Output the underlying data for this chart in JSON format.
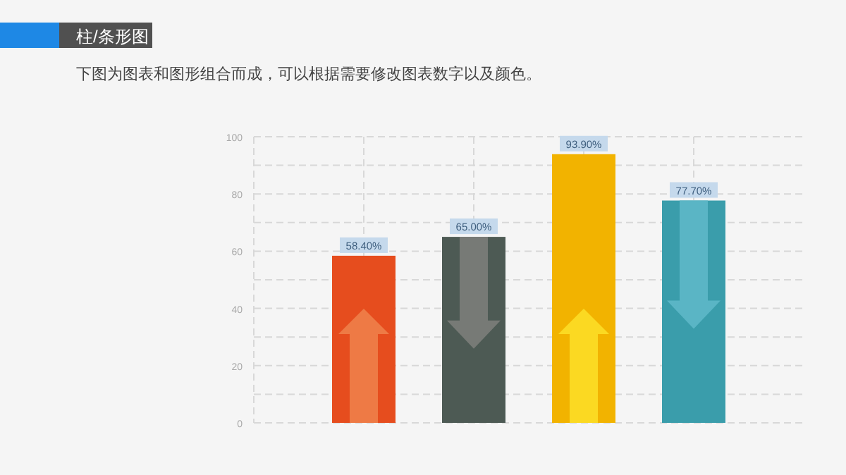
{
  "chart_data": {
    "type": "bar",
    "title": "柱/条形图",
    "subtitle": "下图为图表和图形组合而成，可以根据需要修改图表数字以及颜色。",
    "categories": [
      null,
      null,
      null,
      null
    ],
    "values": [
      58.4,
      65.0,
      93.9,
      77.7
    ],
    "value_labels": [
      "58.40%",
      "65.00%",
      "93.90%",
      "77.70%"
    ],
    "colors": [
      "#e64d1e",
      "#4d5a54",
      "#f2b300",
      "#3a9dab"
    ],
    "ylim": [
      0,
      100
    ],
    "yticks": [
      0,
      {
        "value": 10,
        "label": null
      },
      20,
      {
        "value": 30,
        "label": null
      },
      40,
      {
        "value": 50,
        "label": null
      },
      60,
      {
        "value": 70,
        "label": null
      },
      80,
      {
        "value": 90,
        "label": null
      },
      100
    ],
    "grid": true
  }
}
